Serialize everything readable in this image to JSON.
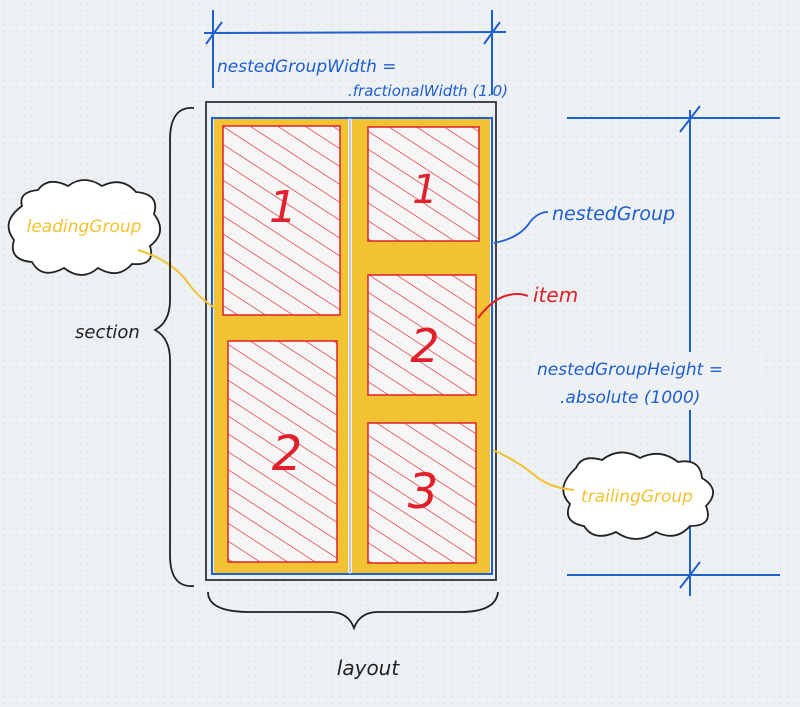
{
  "labels": {
    "width_line1": "nestedGroupWidth =",
    "width_line2": ".fractionalWidth (1.0)",
    "nested_group": "nestedGroup",
    "item": "item",
    "height_line1": "nestedGroupHeight =",
    "height_line2": ".absolute (1000)",
    "leading_group": "leadingGroup",
    "trailing_group": "trailingGroup",
    "section": "section",
    "layout": "layout"
  },
  "leading_items": [
    "1",
    "2"
  ],
  "trailing_items": [
    "1",
    "2",
    "3"
  ],
  "colors": {
    "blue": "#1f5fcf",
    "red": "#e0202a",
    "yellow": "#f1c232",
    "ink": "#222222"
  }
}
